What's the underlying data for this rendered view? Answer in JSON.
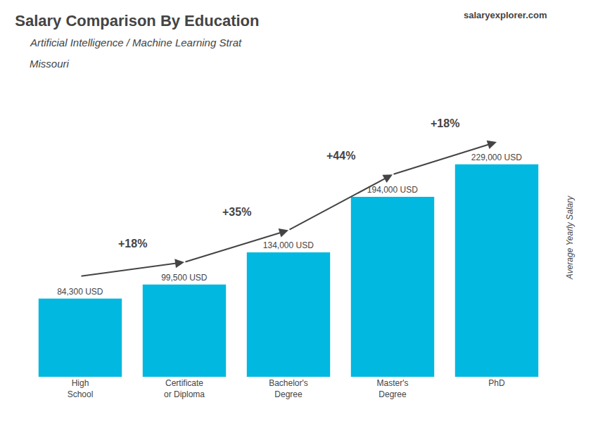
{
  "chart_data": {
    "type": "bar",
    "title": "Salary Comparison By Education",
    "subtitle": "Artificial Intelligence / Machine Learning Strat",
    "ylabel": "Average Yearly Salary",
    "categories": [
      "High\nSchool",
      "Certificate\nor Diploma",
      "Bachelor's\nDegree",
      "Master's\nDegree",
      "PhD"
    ],
    "values": [
      84300,
      99500,
      134000,
      194000,
      229000
    ],
    "value_labels": [
      "84,300 USD",
      "99,500 USD",
      "134,000 USD",
      "194,000 USD",
      "229,000 USD"
    ],
    "color": "#00b8e0",
    "data_labels": true,
    "ylim": [
      0,
      300000
    ],
    "yticks": [
      0,
      100000,
      200000,
      300000
    ],
    "tick_labels": "x",
    "grid": false,
    "annotations": [
      {
        "text": "Missouri"
      },
      {
        "text": "salaryexplorer.com"
      },
      {
        "text": "+18%",
        "from": "High\nSchool",
        "to": "Certificate\nor Diploma"
      },
      {
        "text": "+35%",
        "from": "Certificate\nor Diploma",
        "to": "Bachelor's\nDegree"
      },
      {
        "text": "+44%",
        "from": "Bachelor's\nDegree",
        "to": "Master's\nDegree"
      },
      {
        "text": "+18%",
        "from": "Master's\nDegree",
        "to": "PhD"
      }
    ]
  }
}
